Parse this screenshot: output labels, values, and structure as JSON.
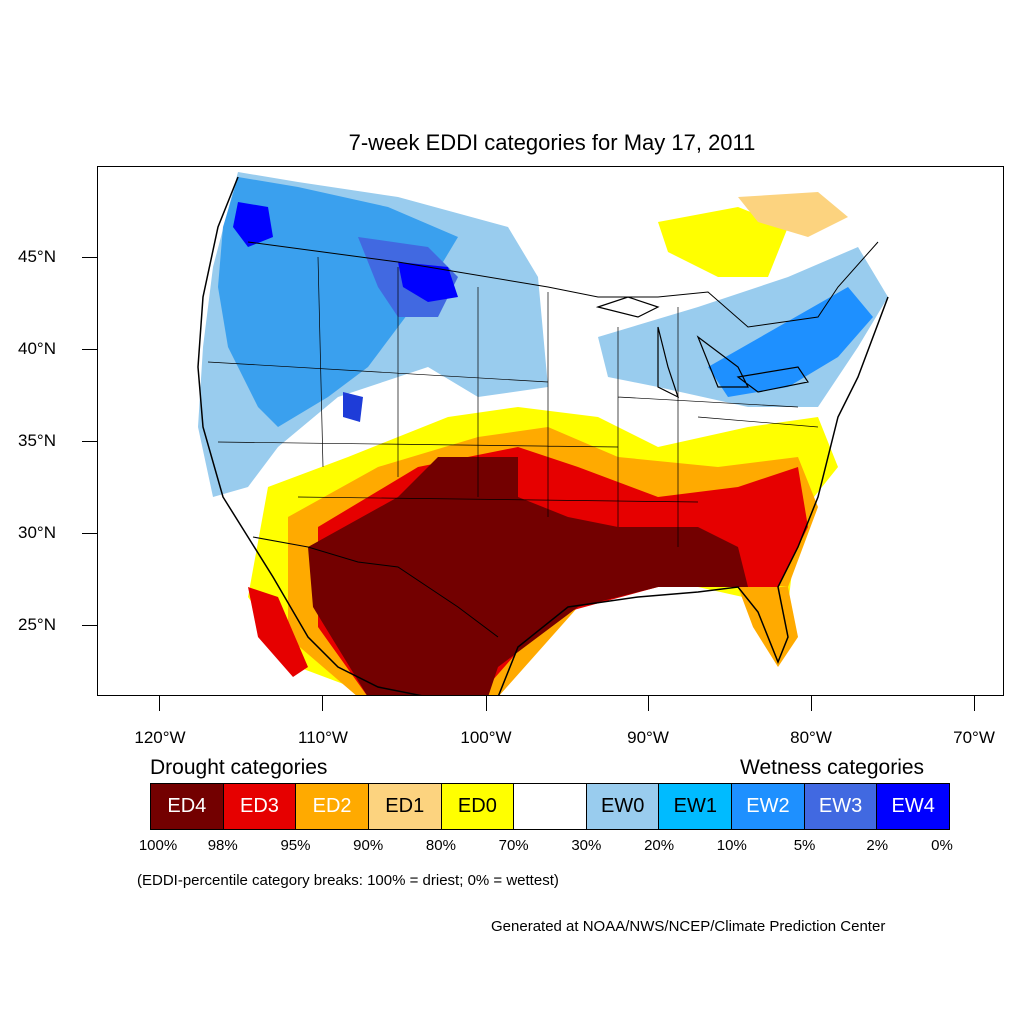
{
  "title": "7-week EDDI categories for May 17, 2011",
  "lat_labels": [
    "45°N",
    "40°N",
    "35°N",
    "30°N",
    "25°N"
  ],
  "lon_labels": [
    "120°W",
    "110°W",
    "100°W",
    "90°W",
    "80°W",
    "70°W"
  ],
  "legend": {
    "drought_heading": "Drought categories",
    "wetness_heading": "Wetness categories",
    "categories": [
      {
        "label": "ED4",
        "color": "#730000",
        "text_color": "#ffffff"
      },
      {
        "label": "ED3",
        "color": "#e60000",
        "text_color": "#ffffff"
      },
      {
        "label": "ED2",
        "color": "#ffaa00",
        "text_color": "#ffffff"
      },
      {
        "label": "ED1",
        "color": "#fcd37f",
        "text_color": "#000000"
      },
      {
        "label": "ED0",
        "color": "#ffff00",
        "text_color": "#000000"
      },
      {
        "label": "",
        "color": "#ffffff",
        "text_color": "#000000"
      },
      {
        "label": "EW0",
        "color": "#99ccee",
        "text_color": "#000000"
      },
      {
        "label": "EW1",
        "color": "#00bbff",
        "text_color": "#000000"
      },
      {
        "label": "EW2",
        "color": "#1e90ff",
        "text_color": "#ffffff"
      },
      {
        "label": "EW3",
        "color": "#4169e1",
        "text_color": "#ffffff"
      },
      {
        "label": "EW4",
        "color": "#0000ff",
        "text_color": "#ffffff"
      }
    ],
    "breaks": [
      "100%",
      "98%",
      "95%",
      "90%",
      "80%",
      "70%",
      "30%",
      "20%",
      "10%",
      "5%",
      "2%",
      "0%"
    ]
  },
  "note": "(EDDI-percentile category breaks: 100% = driest; 0% = wettest)",
  "credit": "Generated at NOAA/NWS/NCEP/Climate Prediction Center"
}
